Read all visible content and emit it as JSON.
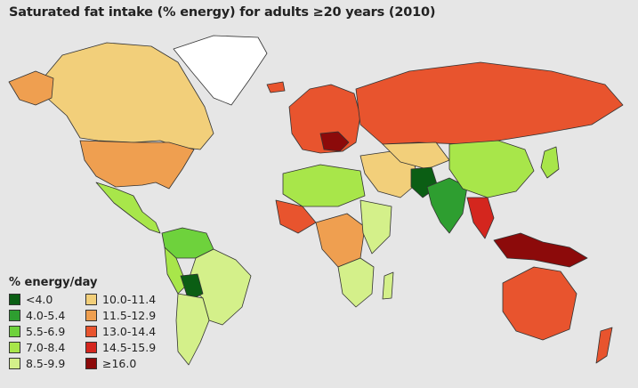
{
  "title": "Saturated fat intake (% energy) for adults ≥20 years (2010)",
  "legend": {
    "title": "% energy/day",
    "items": [
      {
        "label": "<4.0",
        "color": "#0b5e14"
      },
      {
        "label": "4.0-5.4",
        "color": "#2e9e30"
      },
      {
        "label": "5.5-6.9",
        "color": "#6ed23c"
      },
      {
        "label": "7.0-8.4",
        "color": "#a8e64a"
      },
      {
        "label": "8.5-9.9",
        "color": "#d4f08a"
      },
      {
        "label": "10.0-11.4",
        "color": "#f2cf7a"
      },
      {
        "label": "11.5-12.9",
        "color": "#ef9f50"
      },
      {
        "label": "13.0-14.4",
        "color": "#e8542e"
      },
      {
        "label": "14.5-15.9",
        "color": "#d4261e"
      },
      {
        "label": "≥16.0",
        "color": "#8c0a0a"
      }
    ]
  },
  "colors": {
    "no_data": "#ffffff",
    "border": "#333333",
    "background": "#e6e6e6"
  }
}
